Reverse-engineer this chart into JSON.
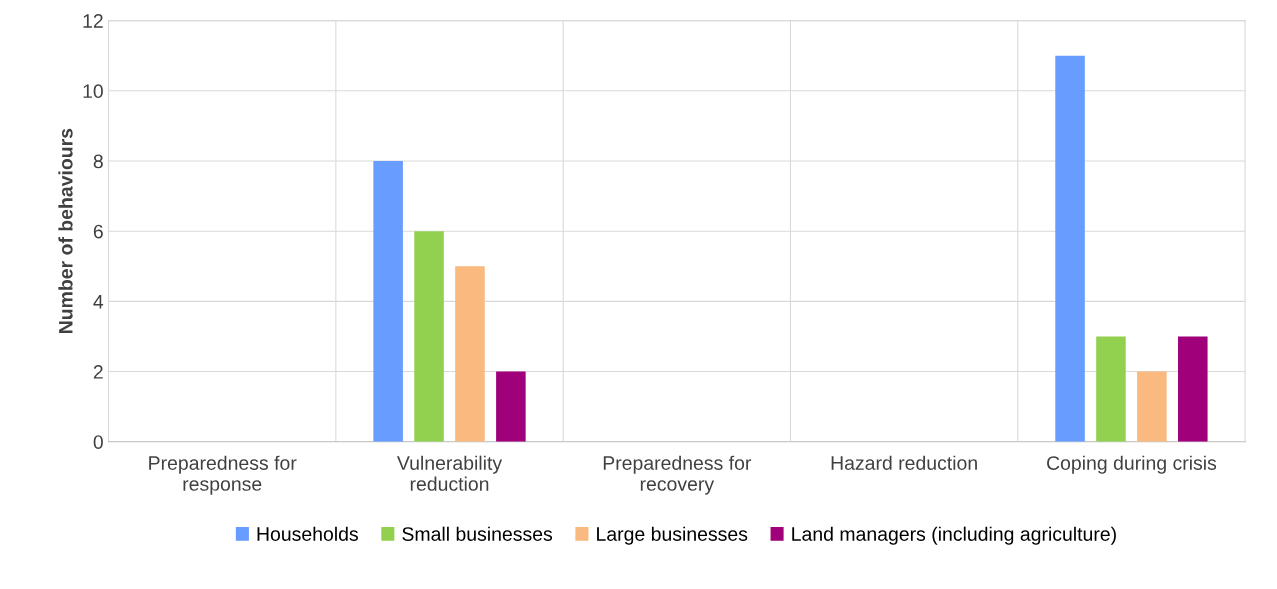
{
  "chart_data": {
    "type": "bar",
    "ylabel": "Number of behaviours",
    "categories": [
      "Preparedness for\nresponse",
      "Vulnerability\nreduction",
      "Preparedness for\nrecovery",
      "Hazard reduction",
      "Coping during crisis"
    ],
    "series": [
      {
        "name": "Households",
        "color": "#699cff",
        "values": [
          0,
          8,
          0,
          0,
          11
        ]
      },
      {
        "name": "Small businesses",
        "color": "#92d050",
        "values": [
          0,
          6,
          0,
          0,
          3
        ]
      },
      {
        "name": "Large businesses",
        "color": "#f9b97f",
        "values": [
          0,
          5,
          0,
          0,
          2
        ]
      },
      {
        "name": "Land managers (including agriculture)",
        "color": "#a0007a",
        "values": [
          0,
          2,
          0,
          0,
          3
        ]
      }
    ],
    "ylim": [
      0,
      12
    ],
    "yticks": [
      0,
      2,
      4,
      6,
      8,
      10,
      12
    ],
    "grid": true,
    "legend": "bottom"
  }
}
